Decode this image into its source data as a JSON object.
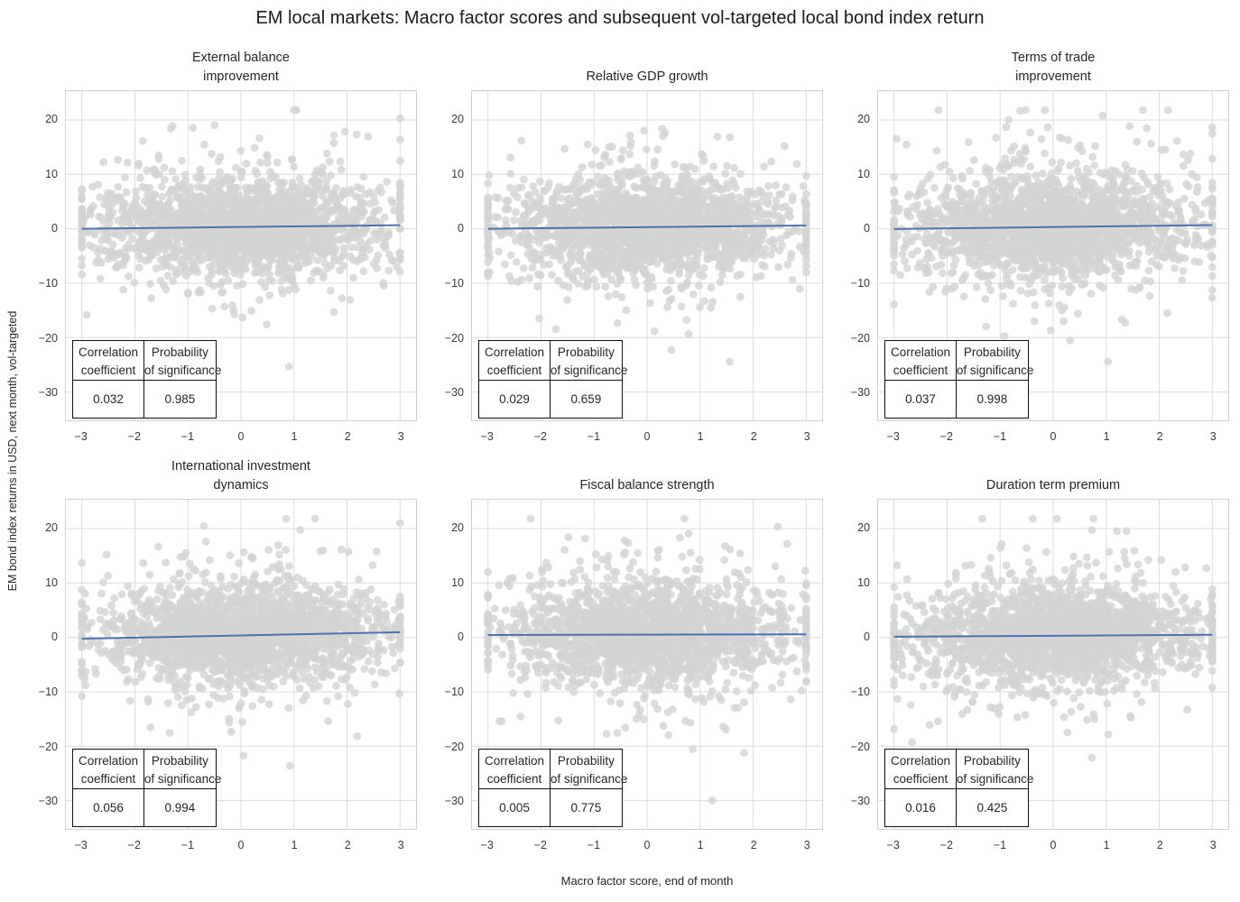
{
  "figure": {
    "title": "EM local markets: Macro factor scores and subsequent vol-targeted local bond index return",
    "xlabel": "Macro factor score, end of month",
    "ylabel": "EM bond index returns in USD, next month, vol-targeted"
  },
  "chart_data": {
    "type": "scatter",
    "layout": "2 rows x 3 columns of subplots, shared axis ranges",
    "grid": true,
    "xlim": [
      -3.3,
      3.3
    ],
    "ylim": [
      -35.2,
      25.3
    ],
    "xticks": [
      -3,
      -2,
      -1,
      0,
      1,
      2,
      3
    ],
    "yticks": [
      20,
      10,
      0,
      -10,
      -20,
      -30
    ],
    "colors": {
      "point": "#d3d3d3",
      "point_opacity": 0.8,
      "trend_line": "#4c72b0",
      "gridline": "#dcdcdc",
      "spine": "#d2d2d2"
    },
    "point_cloud": {
      "n_points_per_panel": 2000,
      "x_winsorized_at": [
        -3,
        3
      ],
      "y_bulk_range": [
        -15,
        15
      ],
      "y_extreme_range": [
        -33.5,
        21.8
      ],
      "x_sd": 1.35,
      "y_sd_mixture": [
        [
          0.78,
          4.2
        ],
        [
          0.2,
          7.5
        ],
        [
          0.02,
          13
        ]
      ]
    },
    "stats_table": {
      "header1": "Correlation\ncoefficient",
      "header2": "Probability\nof significance"
    },
    "panels": [
      {
        "name": "external-balance-improvement",
        "title": "External balance\nimprovement",
        "correlation": "0.032",
        "probability": "0.985",
        "trend_slope": 0.11,
        "trend_intercept": 0.33,
        "seed": 11
      },
      {
        "name": "relative-gdp-growth",
        "title": "Relative GDP growth",
        "correlation": "0.029",
        "probability": "0.659",
        "trend_slope": 0.1,
        "trend_intercept": 0.3,
        "seed": 22
      },
      {
        "name": "terms-of-trade-improvement",
        "title": "Terms of trade\nimprovement",
        "correlation": "0.037",
        "probability": "0.998",
        "trend_slope": 0.12,
        "trend_intercept": 0.32,
        "seed": 33
      },
      {
        "name": "international-investment-dynamics",
        "title": "International investment\ndynamics",
        "correlation": "0.056",
        "probability": "0.994",
        "trend_slope": 0.2,
        "trend_intercept": 0.35,
        "seed": 44
      },
      {
        "name": "fiscal-balance-strength",
        "title": "Fiscal balance strength",
        "correlation": "0.005",
        "probability": "0.775",
        "trend_slope": 0.02,
        "trend_intercept": 0.5,
        "seed": 55
      },
      {
        "name": "duration-term-premium",
        "title": "Duration term premium",
        "correlation": "0.016",
        "probability": "0.425",
        "trend_slope": 0.06,
        "trend_intercept": 0.3,
        "seed": 66
      }
    ]
  }
}
